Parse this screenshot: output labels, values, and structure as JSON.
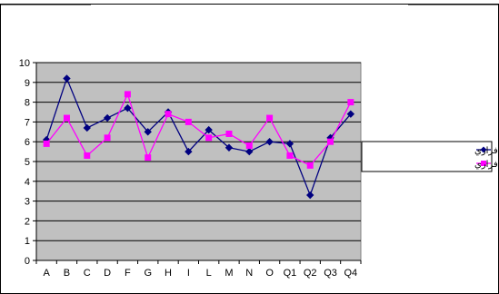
{
  "chart_data": {
    "type": "line",
    "title": "",
    "xlabel": "",
    "ylabel": "",
    "categories": [
      "A",
      "B",
      "C",
      "D",
      "F",
      "G",
      "H",
      "I",
      "L",
      "M",
      "N",
      "O",
      "Q1",
      "Q2",
      "Q3",
      "Q4"
    ],
    "ylim": [
      0,
      10
    ],
    "yticks": [
      0,
      1,
      2,
      3,
      4,
      5,
      6,
      7,
      8,
      9,
      10
    ],
    "grid": true,
    "legend_position": "right",
    "plot_background": "#c0c0c0",
    "series": [
      {
        "name": "ميانگين دختران غير فراري",
        "color": "#000080",
        "marker": "diamond",
        "values": [
          6.1,
          9.2,
          6.7,
          7.2,
          7.7,
          6.5,
          7.5,
          5.5,
          6.6,
          5.7,
          5.5,
          6.0,
          5.9,
          3.3,
          6.2,
          7.4
        ]
      },
      {
        "name": "ميانگين دختران فراري",
        "color": "#ff00ff",
        "marker": "square",
        "values": [
          5.9,
          7.2,
          5.3,
          6.2,
          8.4,
          5.2,
          7.4,
          7.0,
          6.2,
          6.4,
          5.8,
          7.2,
          5.3,
          4.8,
          6.0,
          8.0
        ]
      }
    ]
  }
}
